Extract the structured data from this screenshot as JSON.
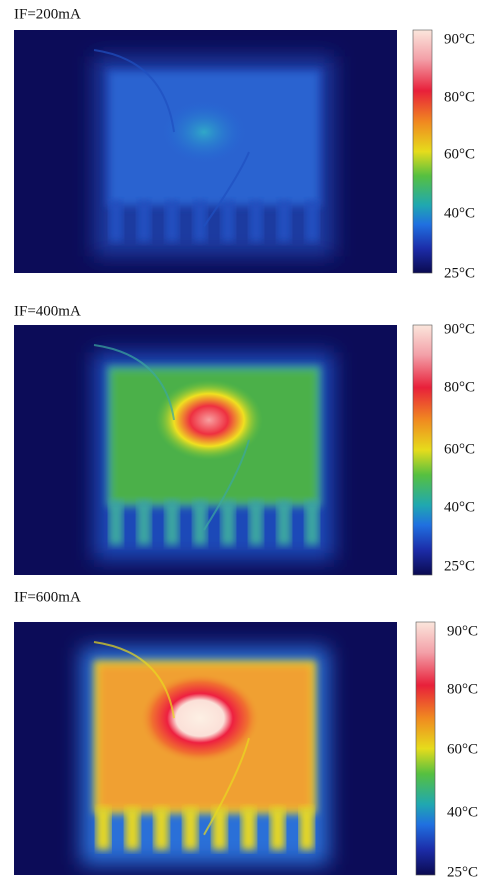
{
  "panels": [
    {
      "label": "IF=200mA",
      "scale": [
        "90°C",
        "80°C",
        "60°C",
        "40°C",
        "25°C"
      ]
    },
    {
      "label": "IF=400mA",
      "scale": [
        "90°C",
        "80°C",
        "60°C",
        "40°C",
        "25°C"
      ]
    },
    {
      "label": "IF=600mA",
      "scale": [
        "90°C",
        "80°C",
        "60°C",
        "40°C",
        "25°C"
      ]
    }
  ]
}
